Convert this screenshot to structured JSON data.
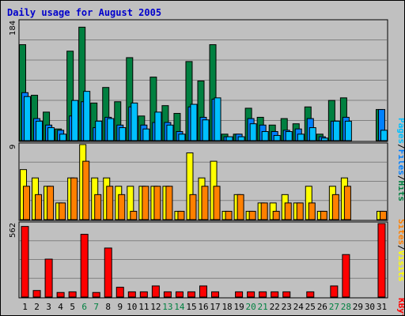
{
  "page": {
    "title": "Daily usage for August 2005"
  },
  "colors": {
    "background": "#c0c0c0",
    "hits": "#008040",
    "files": "#0080ff",
    "pages": "#00c0ff",
    "visits": "#ffff00",
    "sites": "#ff8000",
    "kbytes": "#ff0000",
    "weekend_label": "#008040"
  },
  "labels": {
    "panel1_max": "184",
    "panel2_max": "9",
    "panel3_max": "562",
    "hits": "Hits",
    "files": "Files",
    "pages": "Pages",
    "visits": "Visits",
    "sites": "Sites",
    "kbytes": "KBytes",
    "sep": "/"
  },
  "chart_data": {
    "type": "bar",
    "title": "Daily usage for August 2005",
    "categories": [
      "1",
      "2",
      "3",
      "4",
      "5",
      "6",
      "7",
      "8",
      "9",
      "10",
      "11",
      "12",
      "13",
      "14",
      "15",
      "16",
      "17",
      "18",
      "19",
      "20",
      "21",
      "22",
      "23",
      "24",
      "25",
      "26",
      "27",
      "28",
      "29",
      "30",
      "31"
    ],
    "weekend_days": [
      "6",
      "7",
      "13",
      "14",
      "20",
      "21",
      "27",
      "28"
    ],
    "panels": [
      {
        "max": 184,
        "series": [
          {
            "name": "Hits",
            "values": [
              148,
              70,
              44,
              18,
              138,
              175,
              58,
              82,
              60,
              128,
              38,
              98,
              54,
              42,
              122,
              92,
              148,
              10,
              10,
              50,
              36,
              24,
              34,
              26,
              52,
              10,
              62,
              66,
              0,
              0,
              48
            ]
          },
          {
            "name": "Files",
            "values": [
              74,
              34,
              24,
              16,
              38,
              60,
              20,
              36,
              24,
              52,
              24,
              28,
              28,
              14,
              52,
              36,
              64,
              6,
              10,
              34,
              24,
              14,
              16,
              18,
              34,
              6,
              30,
              36,
              0,
              0,
              48
            ]
          },
          {
            "name": "Pages",
            "values": [
              68,
              30,
              20,
              10,
              62,
              76,
              30,
              34,
              20,
              58,
              18,
              44,
              24,
              10,
              56,
              32,
              66,
              6,
              6,
              26,
              14,
              8,
              14,
              10,
              20,
              4,
              30,
              30,
              0,
              0,
              16
            ]
          }
        ]
      },
      {
        "max": 9,
        "series": [
          {
            "name": "Visits",
            "values": [
              6,
              5,
              4,
              2,
              5,
              9,
              5,
              5,
              4,
              4,
              4,
              4,
              4,
              1,
              8,
              5,
              7,
              1,
              3,
              1,
              2,
              2,
              3,
              2,
              4,
              1,
              4,
              5,
              0,
              0,
              1
            ]
          },
          {
            "name": "Sites",
            "values": [
              4,
              3,
              4,
              2,
              5,
              7,
              3,
              4,
              3,
              1,
              4,
              4,
              4,
              1,
              3,
              4,
              4,
              1,
              3,
              1,
              2,
              1,
              2,
              2,
              2,
              1,
              3,
              4,
              0,
              0,
              1
            ]
          }
        ]
      },
      {
        "max": 562,
        "series": [
          {
            "name": "KBytes",
            "values": [
              540,
              50,
              290,
              35,
              40,
              480,
              35,
              375,
              75,
              40,
              40,
              85,
              40,
              40,
              40,
              85,
              40,
              0,
              40,
              40,
              40,
              40,
              40,
              0,
              40,
              0,
              85,
              325,
              0,
              0,
              562
            ]
          }
        ]
      }
    ]
  }
}
